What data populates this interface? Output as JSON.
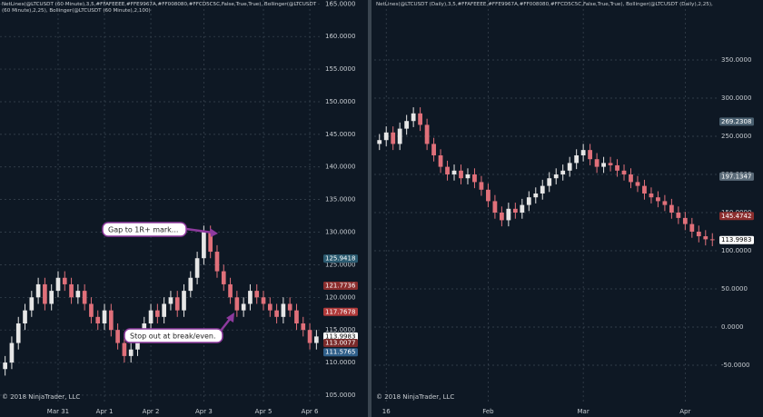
{
  "chart_data": [
    {
      "type": "candlestick",
      "title": "NetLines(@LTCUSDT (60 Minute),3,5,#FFAFEEEE,#FFE9967A,#FF008080,#FFCD5C5C,False,True,True), Bollinger(@LTCUSDT (60 Minute),2,25), Bollinger(@LTCUSDT (60 Minute),2,100)",
      "footer": "© 2018 NinjaTrader, LLC",
      "up_color": "#e6e6e6",
      "down_color": "#e0707a",
      "categories": [
        null,
        null,
        null,
        null,
        null,
        null,
        null,
        null,
        "Mar 31",
        null,
        null,
        null,
        null,
        null,
        null,
        "Apr 1",
        null,
        null,
        null,
        null,
        null,
        null,
        "Apr 2",
        null,
        null,
        null,
        null,
        null,
        null,
        null,
        "Apr 3",
        null,
        null,
        null,
        null,
        null,
        null,
        null,
        null,
        "Apr 5",
        null,
        null,
        null,
        null,
        null,
        null,
        "Apr 6",
        null
      ],
      "open": [
        109,
        110,
        113,
        116,
        118,
        120,
        122,
        119,
        121,
        123,
        122,
        120,
        121,
        119,
        117,
        116,
        118,
        115,
        113,
        111,
        112,
        114,
        116,
        118,
        117,
        119,
        120,
        118,
        121,
        123,
        126,
        130,
        127,
        124,
        122,
        120,
        118,
        119,
        121,
        120,
        119,
        118,
        117,
        119,
        118,
        116,
        115,
        113
      ],
      "high": [
        111,
        114,
        117,
        119,
        121,
        123,
        123,
        122,
        124,
        124,
        123,
        122,
        122,
        120,
        118,
        119,
        119,
        116,
        114,
        113,
        115,
        117,
        119,
        119,
        120,
        121,
        121,
        122,
        124,
        127,
        131,
        131,
        128,
        125,
        123,
        121,
        120,
        122,
        122,
        121,
        120,
        119,
        120,
        120,
        119,
        117,
        116,
        115
      ],
      "low": [
        108,
        109,
        112,
        115,
        117,
        119,
        118,
        118,
        120,
        121,
        119,
        119,
        118,
        116,
        115,
        115,
        114,
        112,
        110,
        110,
        111,
        113,
        115,
        116,
        116,
        118,
        117,
        117,
        120,
        122,
        125,
        126,
        123,
        121,
        119,
        117,
        117,
        118,
        119,
        118,
        117,
        116,
        116,
        117,
        115,
        114,
        112,
        112
      ],
      "close": [
        110,
        113,
        116,
        118,
        120,
        122,
        119,
        121,
        123,
        122,
        120,
        121,
        119,
        117,
        116,
        118,
        115,
        113,
        111,
        112,
        114,
        116,
        118,
        117,
        119,
        120,
        118,
        121,
        123,
        126,
        130,
        127,
        124,
        122,
        120,
        118,
        119,
        121,
        120,
        119,
        118,
        117,
        119,
        118,
        116,
        115,
        113,
        114
      ],
      "ylim": [
        103.6,
        165.6
      ],
      "yticks": [
        {
          "value": 105,
          "label": "105.0000"
        },
        {
          "value": 110,
          "label": "110.0000"
        },
        {
          "value": 115,
          "label": "115.0000"
        },
        {
          "value": 120,
          "label": "120.0000"
        },
        {
          "value": 125,
          "label": "125.0000"
        },
        {
          "value": 130,
          "label": "130.0000"
        },
        {
          "value": 135,
          "label": "135.0000"
        },
        {
          "value": 140,
          "label": "140.0000"
        },
        {
          "value": 145,
          "label": "145.0000"
        },
        {
          "value": 150,
          "label": "150.0000"
        },
        {
          "value": 155,
          "label": "155.0000"
        },
        {
          "value": 160,
          "label": "160.0000"
        },
        {
          "value": 165,
          "label": "165.0000"
        }
      ],
      "grid": true,
      "price_markers": [
        {
          "value": 125.9418,
          "color": "#2a5a70"
        },
        {
          "value": 121.7736,
          "color": "#8b2e2e"
        },
        {
          "value": 117.7678,
          "color": "#b03a3a"
        },
        {
          "value": 113.9983,
          "color": "#ffffff"
        },
        {
          "value": 113.0077,
          "color": "#7a2a2a"
        },
        {
          "value": 111.5765,
          "color": "#2f5f8a"
        }
      ],
      "annotations": [
        {
          "text": "Gap to 1R+ mark..."
        },
        {
          "text": "Stop out at break/even."
        }
      ]
    },
    {
      "type": "candlestick",
      "title": "NetLines(@LTCUSDT (Daily),3,5,#FFAFEEEE,#FFE9967A,#FF008080,#FFCD5C5C,False,True,True), Bollinger(@LTCUSDT (Daily),2,25), Bollinger(@LTCUSDT (Daily),2,100)",
      "footer": "© 2018 NinjaTrader, LLC",
      "up_color": "#e6e6e6",
      "down_color": "#e0707a",
      "categories": [
        null,
        "16",
        null,
        null,
        null,
        null,
        null,
        null,
        null,
        null,
        null,
        null,
        null,
        null,
        null,
        null,
        "Feb",
        null,
        null,
        null,
        null,
        null,
        null,
        null,
        null,
        null,
        null,
        null,
        null,
        null,
        "Mar",
        null,
        null,
        null,
        null,
        null,
        null,
        null,
        null,
        null,
        null,
        null,
        null,
        null,
        null,
        "Apr",
        null,
        null,
        null,
        null
      ],
      "open": [
        240,
        245,
        255,
        240,
        260,
        270,
        280,
        265,
        240,
        225,
        210,
        200,
        205,
        195,
        200,
        190,
        180,
        165,
        150,
        140,
        155,
        150,
        160,
        170,
        175,
        185,
        195,
        200,
        205,
        215,
        225,
        232,
        220,
        210,
        215,
        212,
        205,
        200,
        190,
        185,
        175,
        170,
        165,
        160,
        150,
        143,
        135,
        125,
        119,
        115
      ],
      "high": [
        253,
        263,
        263,
        268,
        278,
        288,
        288,
        273,
        248,
        233,
        218,
        213,
        213,
        208,
        208,
        198,
        188,
        173,
        158,
        163,
        163,
        168,
        178,
        183,
        193,
        203,
        208,
        213,
        223,
        233,
        240,
        240,
        228,
        223,
        223,
        220,
        213,
        208,
        198,
        193,
        183,
        178,
        173,
        168,
        158,
        151,
        143,
        133,
        127,
        123
      ],
      "low": [
        232,
        237,
        232,
        232,
        252,
        262,
        257,
        232,
        217,
        202,
        192,
        192,
        187,
        187,
        182,
        172,
        157,
        142,
        132,
        132,
        142,
        142,
        152,
        162,
        167,
        177,
        187,
        192,
        197,
        207,
        217,
        212,
        202,
        202,
        204,
        197,
        192,
        182,
        177,
        167,
        162,
        157,
        152,
        142,
        135,
        127,
        117,
        111,
        107,
        106
      ],
      "close": [
        245,
        255,
        240,
        260,
        270,
        280,
        265,
        240,
        225,
        210,
        200,
        205,
        195,
        200,
        190,
        180,
        165,
        150,
        140,
        155,
        150,
        160,
        170,
        175,
        185,
        195,
        200,
        205,
        215,
        225,
        232,
        220,
        210,
        215,
        212,
        205,
        200,
        190,
        185,
        175,
        170,
        165,
        160,
        150,
        143,
        135,
        125,
        119,
        115,
        114
      ],
      "ylim": [
        -101.2,
        428.6
      ],
      "yticks": [
        {
          "value": -50,
          "label": "-50.0000"
        },
        {
          "value": 0,
          "label": "0.0000"
        },
        {
          "value": 50,
          "label": "50.0000"
        },
        {
          "value": 100,
          "label": "100.0000"
        },
        {
          "value": 150,
          "label": "150.0000"
        },
        {
          "value": 200,
          "label": "200.0000"
        },
        {
          "value": 250,
          "label": "250.0000"
        },
        {
          "value": 300,
          "label": "300.0000"
        },
        {
          "value": 350,
          "label": "350.0000"
        }
      ],
      "grid": true,
      "price_markers": [
        {
          "value": 269.2308,
          "color": "#4a6070"
        },
        {
          "value": 197.1347,
          "color": "#5a6a78"
        },
        {
          "value": 145.4742,
          "color": "#8b2e2e"
        },
        {
          "value": 113.9983,
          "color": "#ffffff"
        }
      ]
    }
  ]
}
